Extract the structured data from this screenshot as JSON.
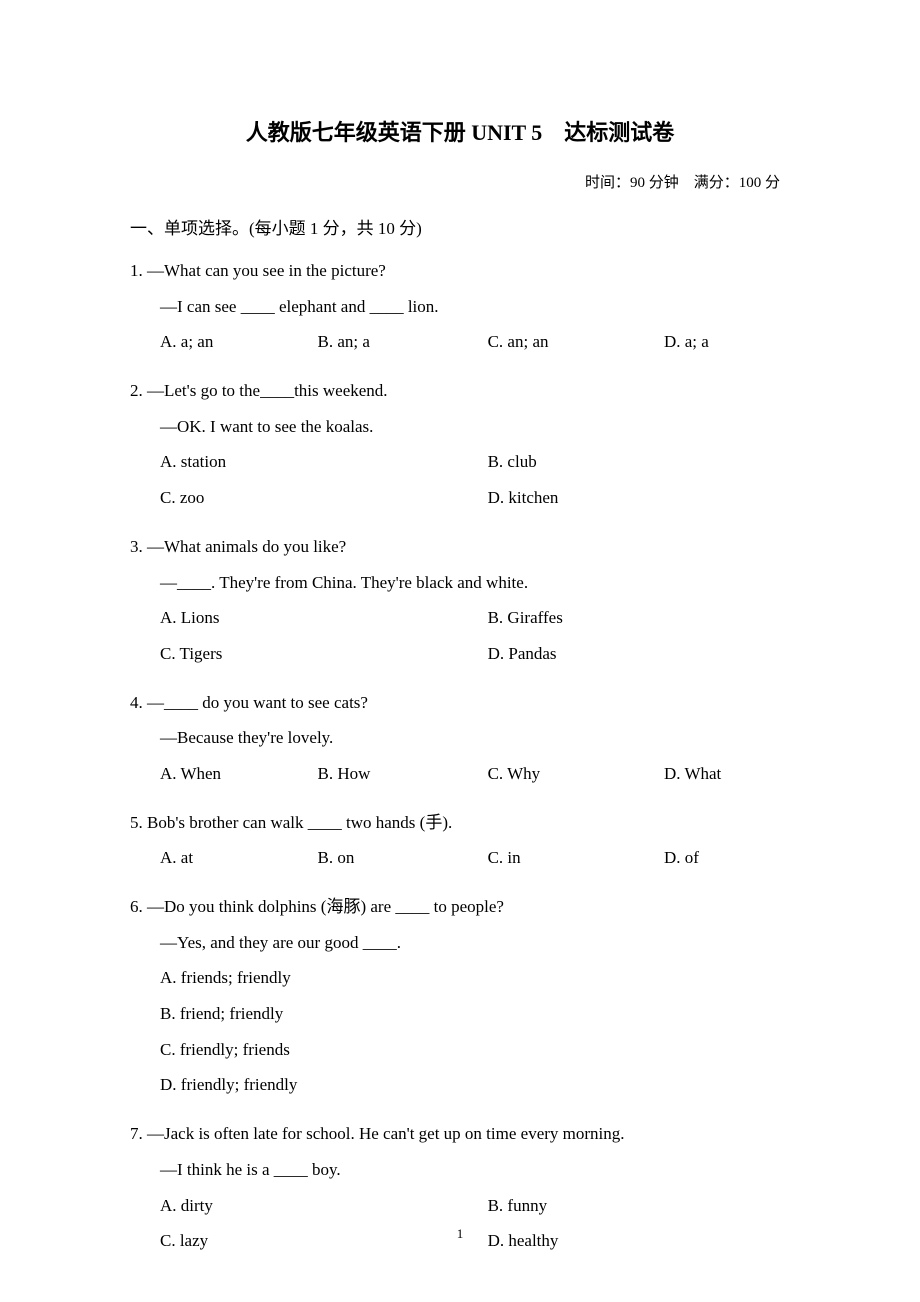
{
  "title": "人教版七年级英语下册 UNIT 5　达标测试卷",
  "meta": "时间：90 分钟　满分：100 分",
  "section_header": "一、单项选择。(每小题 1 分，共 10 分)",
  "questions": [
    {
      "num": "1.",
      "lines": [
        "—What can you see in the picture?",
        "—I can see ____ elephant and ____ lion."
      ],
      "layout": "4col",
      "options": [
        "A. a; an",
        "B. an; a",
        "C. an; an",
        "D. a; a"
      ]
    },
    {
      "num": "2.",
      "lines": [
        "—Let's go to the____this weekend.",
        "—OK. I want to see the koalas."
      ],
      "layout": "2col",
      "options": [
        "A. station",
        "B. club",
        "C. zoo",
        "D. kitchen"
      ]
    },
    {
      "num": "3.",
      "lines": [
        "—What animals do you like?",
        "—____. They're from China. They're black and white."
      ],
      "layout": "2col",
      "options": [
        "A. Lions",
        "B. Giraffes",
        "C. Tigers",
        "D. Pandas"
      ]
    },
    {
      "num": "4.",
      "lines": [
        "—____ do you want to see cats?",
        "—Because they're lovely."
      ],
      "layout": "4col",
      "options": [
        "A. When",
        "B. How",
        "C. Why",
        "D. What"
      ]
    },
    {
      "num": "5.",
      "lines": [
        "Bob's brother can walk ____ two hands (手)."
      ],
      "layout": "4col",
      "options": [
        "A. at",
        "B. on",
        "C. in",
        "D. of"
      ]
    },
    {
      "num": "6.",
      "lines": [
        "—Do you think dolphins (海豚) are ____ to people?",
        "—Yes, and they are our good ____."
      ],
      "layout": "1col",
      "options": [
        "A. friends; friendly",
        "B. friend; friendly",
        "C. friendly; friends",
        "D. friendly; friendly"
      ]
    },
    {
      "num": "7.",
      "lines": [
        "—Jack is often late for school. He can't get up on time every morning.",
        "—I think he is a ____ boy."
      ],
      "layout": "2col",
      "options": [
        "A. dirty",
        "B. funny",
        "C. lazy",
        "D. healthy"
      ]
    }
  ],
  "page_number": "1"
}
